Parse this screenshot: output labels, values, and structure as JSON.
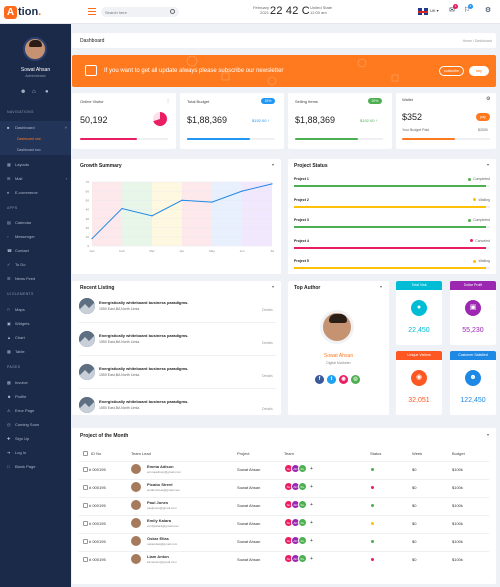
{
  "header": {
    "logo_letter": "A",
    "logo_text": "tion",
    "logo_dot": ".",
    "search_placeholder": "Search here",
    "date_day": "February",
    "date_year": "2021",
    "temperature": "22 42 C",
    "location_country": "United State",
    "location_time": "12:00 am",
    "language": "UK",
    "notif_count": "1",
    "msg_count": "2"
  },
  "sidebar": {
    "user_name": "Sowat Ahsan",
    "user_role": "Administrator",
    "section_navigations": "NAVIGATIONS",
    "dashboard": "Dashboard",
    "dashboard_one": "Dashboard one",
    "dashboard_two": "Dashboard two",
    "layouts": "Layouts",
    "mail": "Mail",
    "ecommerce": "E-commerce",
    "section_apps": "APPS",
    "calendar": "Calendar",
    "messenger": "Messenger",
    "contact": "Contact",
    "todo": "To Do",
    "news_feed": "News Feed",
    "section_ui": "UI ELEMENTS",
    "maps": "Maps",
    "widgets": "Widgets",
    "chart": "Chart",
    "table": "Table",
    "section_pages": "PAGES",
    "invoice": "Invoice",
    "profile": "Profile",
    "error_page": "Error Page",
    "coming_soon": "Coming Soon",
    "sign_up": "Sign Up",
    "log_in": "Log In",
    "blank_page": "Blank Page"
  },
  "page": {
    "title": "Dashboard",
    "breadcrumb": "Home / Dashboard"
  },
  "banner": {
    "text": "If you want to get all update always please subscribe our newsletter",
    "subscribe": "subscribe",
    "skip": "skip"
  },
  "stats": {
    "online": {
      "title": "Online Visitor",
      "value": "50,192",
      "bar_color": "#e91e63",
      "bar_fill": 0.65,
      "donut_fraction": 0.7
    },
    "budget": {
      "title": "Total Budget",
      "value": "$1,88,369",
      "badge": "15%",
      "secondary": "$192.00",
      "bar_color": "#2196f3",
      "bar_fill": 0.72
    },
    "selling": {
      "title": "Selling Items",
      "value": "$1,88,369",
      "badge": "20%",
      "secondary": "$192.00",
      "bar_color": "#4caf50",
      "bar_fill": 0.72
    },
    "wallet": {
      "title": "Wallet",
      "value": "$352",
      "button": "pay",
      "sub_label": "Your Budget Paid",
      "sub_value": "$2000",
      "bar_color": "#ff7a1f",
      "bar_fill": 0.6
    }
  },
  "growth": {
    "title": "Growth Summary"
  },
  "chart_data": {
    "type": "line",
    "title": "Growth Summary",
    "categories": [
      "Jan",
      "Feb",
      "Mar",
      "Apr",
      "May",
      "Jun",
      "Jul"
    ],
    "values": [
      8,
      41,
      33,
      50,
      48,
      60,
      68
    ],
    "ylim": [
      0,
      70
    ],
    "yticks": [
      0,
      10,
      20,
      30,
      40,
      50,
      60,
      70
    ],
    "line_color": "#1e88e5",
    "column_bands": [
      "#fde8ec",
      "#e8f6ea",
      "#fff8e0",
      "#fde8ec",
      "#e8f0fd",
      "#f1e8fd"
    ]
  },
  "project_status": {
    "title": "Project Status",
    "items": [
      {
        "name": "Project 1",
        "status": "Completed",
        "color": "#4caf50",
        "fill": 0.98
      },
      {
        "name": "Project 2",
        "status": "Waiting",
        "color": "#ffc107",
        "fill": 0.98
      },
      {
        "name": "Project 3",
        "status": "Completed",
        "color": "#4caf50",
        "fill": 0.98
      },
      {
        "name": "Project 4",
        "status": "Canceled",
        "color": "#e91e63",
        "fill": 0.98
      },
      {
        "name": "Project 5",
        "status": "Waiting",
        "color": "#ffc107",
        "fill": 0.98
      }
    ]
  },
  "recent": {
    "title": "Recent Listing",
    "items": [
      {
        "title": "Energistically whiteboard business paradigms.",
        "address": "1550 East,BA North Limia.",
        "details": "Details"
      },
      {
        "title": "Energistically whiteboard business paradigms.",
        "address": "1550 East,BA North Limia.",
        "details": "Details"
      },
      {
        "title": "Energistically whiteboard business paradigms.",
        "address": "1550 East,BA North Limia.",
        "details": "Details"
      },
      {
        "title": "Energistically whiteboard business paradigms.",
        "address": "1550 East,BA North Limia.",
        "details": "Details"
      }
    ]
  },
  "author": {
    "title": "Top Author",
    "name": "Sowat Ahsan",
    "role": "Digital Marketer"
  },
  "kpis": {
    "total_visit": {
      "label": "Total Visit",
      "value": "22,450",
      "color": "#00bcd4"
    },
    "dollar_profit": {
      "label": "Dollar Profit",
      "value": "55,230",
      "color": "#9c27b0"
    },
    "unique_visitors": {
      "label": "Unique Visitors",
      "value": "32,051",
      "color": "#ff5722"
    },
    "customer_satisfied": {
      "label": "Customer Satisfied",
      "value": "122,450",
      "color": "#1e88e5"
    }
  },
  "project_table": {
    "title": "Project of the Month",
    "headers": [
      "ID No",
      "Team Lead",
      "Project",
      "Team",
      "Status",
      "Week",
      "Budget"
    ],
    "rows": [
      {
        "id": "# 000195",
        "lead": "Emma Adison",
        "email": "emmaadison@gmail.com",
        "project": "Sowat Ahsan",
        "status_color": "#4caf50",
        "week": "$0",
        "budget": "$100k"
      },
      {
        "id": "# 000195",
        "lead": "Picabo Street",
        "email": "picabostreet@gmail.com",
        "project": "Sowat Ahsan",
        "status_color": "#e91e63",
        "week": "$0",
        "budget": "$100k"
      },
      {
        "id": "# 000195",
        "lead": "Paul Jones",
        "email": "pauljones@gmail.com",
        "project": "Sowat Ahsan",
        "status_color": "#4caf50",
        "week": "$0",
        "budget": "$100k"
      },
      {
        "id": "# 000195",
        "lead": "Emily Kalara",
        "email": "emilykalara@gmail.com",
        "project": "Sowat Ahsan",
        "status_color": "#ffc107",
        "week": "$0",
        "budget": "$100k"
      },
      {
        "id": "# 000195",
        "lead": "Oskar Elias",
        "email": "oskarelias@gmail.com",
        "project": "Sowat Ahsan",
        "status_color": "#4caf50",
        "week": "$0",
        "budget": "$100k"
      },
      {
        "id": "# 000195",
        "lead": "Liam Anton",
        "email": "liamanton@gmail.com",
        "project": "Sowat Ahsan",
        "status_color": "#e91e63",
        "week": "$0",
        "budget": "$100k"
      }
    ],
    "team_labels": [
      "SL",
      "AD",
      "KL"
    ],
    "team_more": "+"
  }
}
